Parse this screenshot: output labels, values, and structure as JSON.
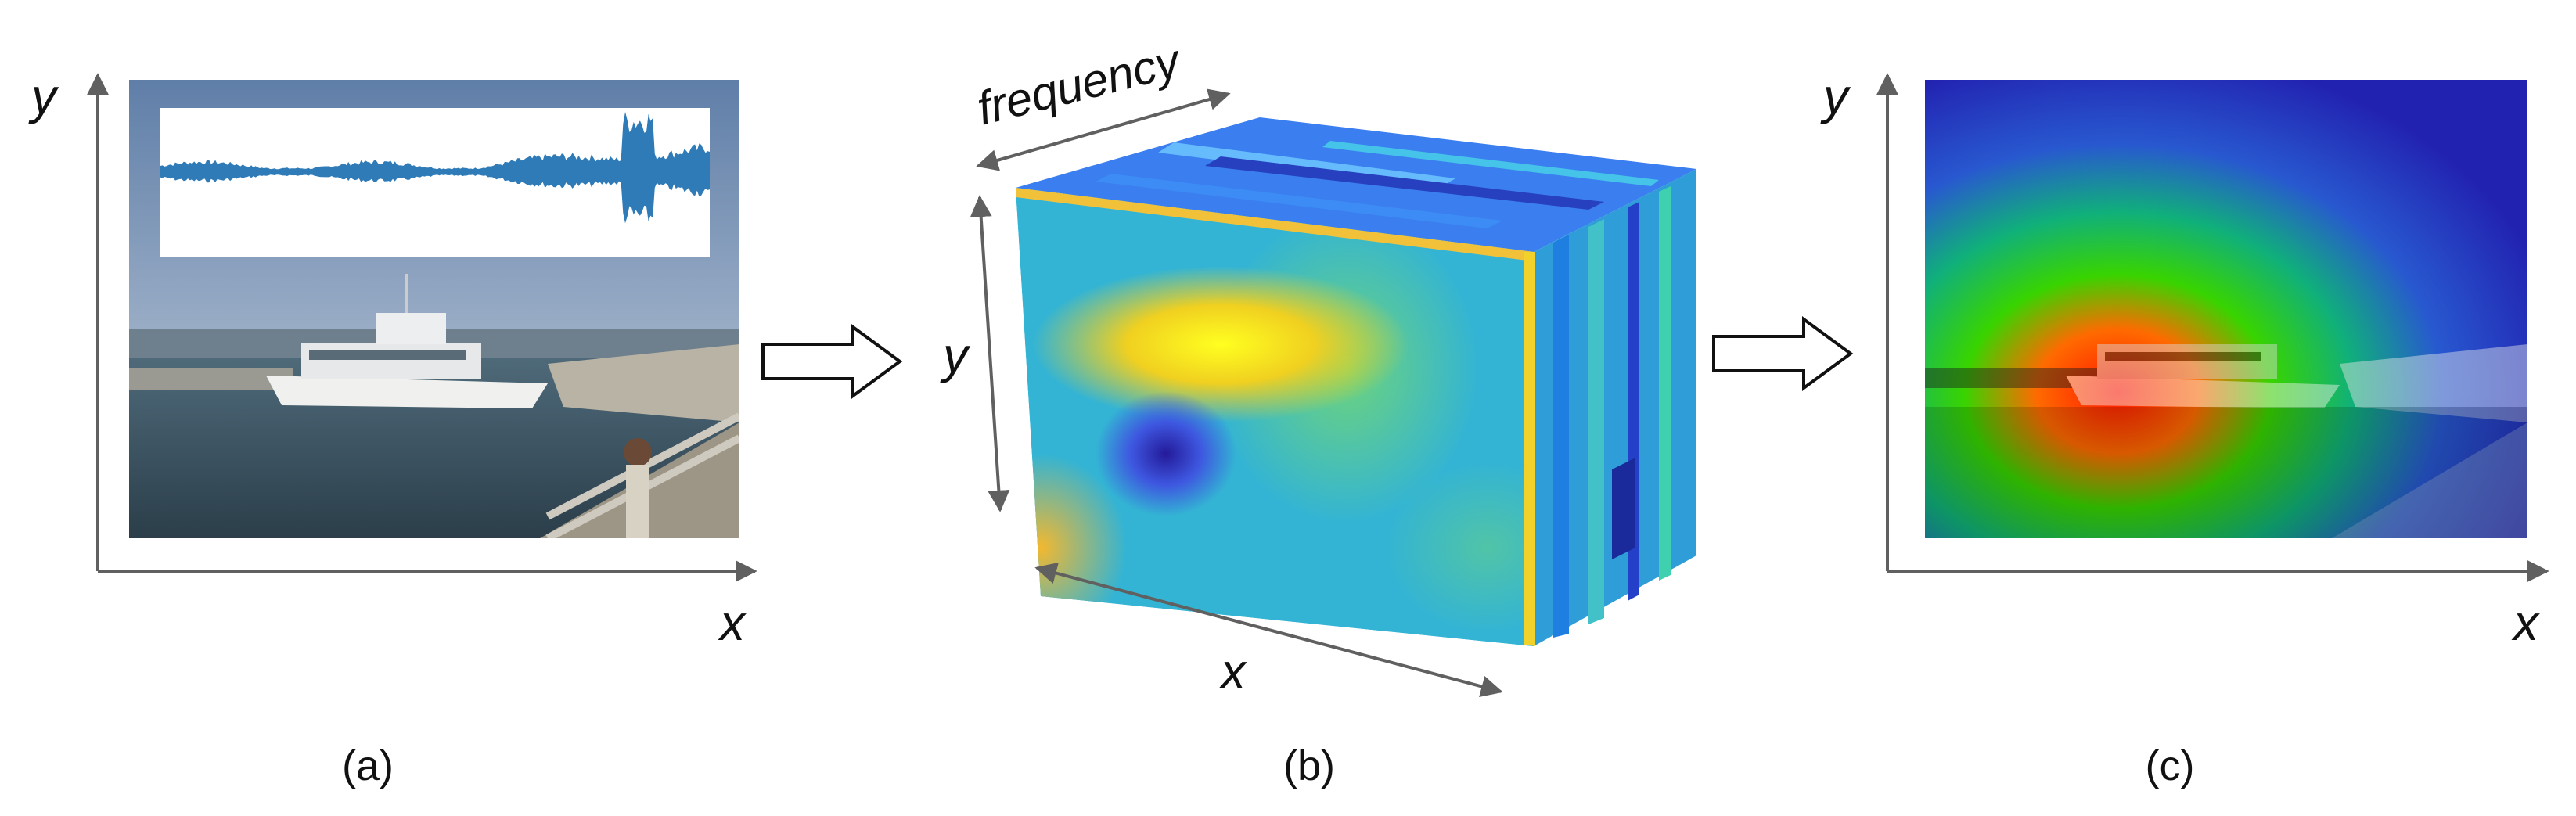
{
  "panels": {
    "a": {
      "label": "(a)",
      "x_axis": "x",
      "y_axis": "y"
    },
    "b": {
      "label": "(b)",
      "x_axis": "x",
      "y_axis": "y",
      "depth_axis": "frequency"
    },
    "c": {
      "label": "(c)",
      "x_axis": "x",
      "y_axis": "y"
    }
  },
  "colors": {
    "axis": "#606060",
    "waveform": "#2e7bb8",
    "sky": "#8ea9c8",
    "sea": "#3f5868",
    "cube_base": "#2fb3d8",
    "heat_hot": "#ff2a00",
    "heat_mid": "#2fd400",
    "heat_cold": "#2a2ad0"
  },
  "icons": {
    "arrow_ab": "block-arrow-right",
    "arrow_bc": "block-arrow-right"
  }
}
